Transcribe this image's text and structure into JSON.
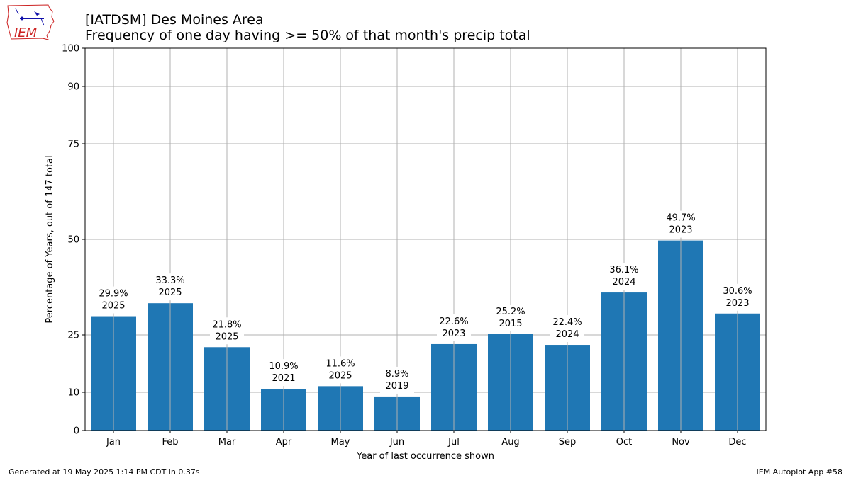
{
  "header": {
    "title": "[IATDSM] Des Moines Area",
    "subtitle": "Frequency of one day having >= 50% of that month's precip total"
  },
  "logo": {
    "text": "IEM",
    "icon": "iowa-state-outline-icon"
  },
  "footer": {
    "generated": "Generated at 19 May 2025 1:14 PM CDT in 0.37s",
    "app": "IEM Autoplot App #58"
  },
  "colors": {
    "bar": "#1f77b4",
    "grid": "#b0b0b0",
    "logo_red": "#cc2222",
    "logo_blue": "#1111aa"
  },
  "chart_data": {
    "type": "bar",
    "xlabel": "Year of last occurrence shown",
    "ylabel": "Percentage of Years, out of 147 total",
    "ylim": [
      0,
      100
    ],
    "yticks": [
      0,
      10,
      25,
      50,
      75,
      90,
      100
    ],
    "grid": true,
    "categories": [
      "Jan",
      "Feb",
      "Mar",
      "Apr",
      "May",
      "Jun",
      "Jul",
      "Aug",
      "Sep",
      "Oct",
      "Nov",
      "Dec"
    ],
    "values": [
      29.9,
      33.3,
      21.8,
      10.9,
      11.6,
      8.9,
      22.6,
      25.2,
      22.4,
      36.1,
      49.7,
      30.6
    ],
    "labels": [
      "29.9%",
      "33.3%",
      "21.8%",
      "10.9%",
      "11.6%",
      "8.9%",
      "22.6%",
      "25.2%",
      "22.4%",
      "36.1%",
      "49.7%",
      "30.6%"
    ],
    "years": [
      "2025",
      "2025",
      "2025",
      "2021",
      "2025",
      "2019",
      "2023",
      "2015",
      "2024",
      "2024",
      "2023",
      "2023"
    ]
  }
}
